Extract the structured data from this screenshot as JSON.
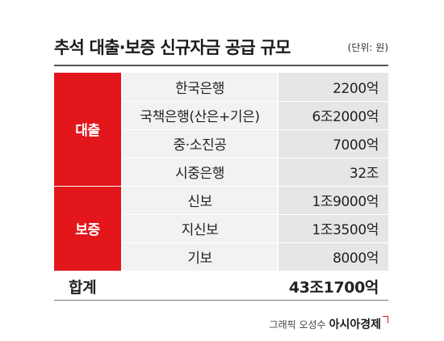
{
  "title": "추석 대출·보증 신규자금 공급 규모",
  "unit": "(단위: 원)",
  "groups": [
    {
      "label": "대출",
      "rows": [
        {
          "item": "한국은행",
          "value": "2200억"
        },
        {
          "item": "국책은행(산은+기은)",
          "value": "6조2000억"
        },
        {
          "item": "중·소진공",
          "value": "7000억"
        },
        {
          "item": "시중은행",
          "value": "32조"
        }
      ]
    },
    {
      "label": "보증",
      "rows": [
        {
          "item": "신보",
          "value": "1조9000억"
        },
        {
          "item": "지신보",
          "value": "1조3500억"
        },
        {
          "item": "기보",
          "value": "8000억"
        }
      ]
    }
  ],
  "total": {
    "label": "합계",
    "value": "43조1700억"
  },
  "credit": {
    "text": "그래픽 오성수",
    "brand": "아시아경제"
  },
  "colors": {
    "accent": "#e3171b",
    "item_bg": "#f2f2f2",
    "value_bg": "#e6e6e6"
  }
}
